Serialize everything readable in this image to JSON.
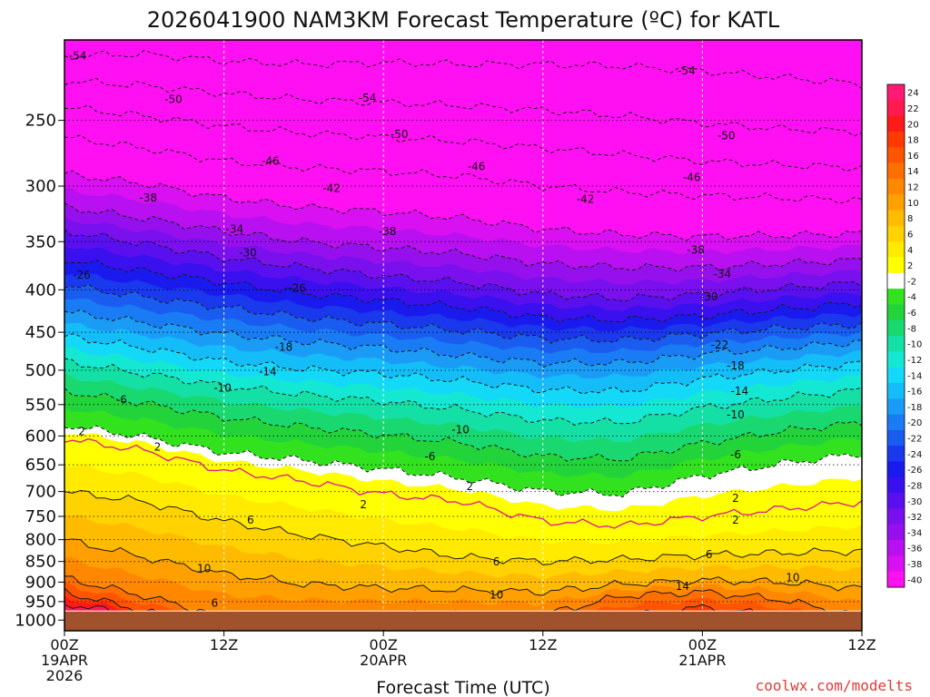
{
  "chart_data": {
    "type": "heatmap",
    "title": "2026041900 NAM3KM Forecast Temperature (ºC) for KATL",
    "xlabel": "Forecast Time (UTC)",
    "ylabel": "",
    "credit": "coolwx.com/modelts",
    "x_ticks": [
      {
        "hours": 0,
        "lines": [
          "00Z",
          "19APR",
          "2026"
        ]
      },
      {
        "hours": 12,
        "lines": [
          "12Z"
        ]
      },
      {
        "hours": 24,
        "lines": [
          "00Z",
          "20APR"
        ]
      },
      {
        "hours": 36,
        "lines": [
          "12Z"
        ]
      },
      {
        "hours": 48,
        "lines": [
          "00Z",
          "21APR"
        ]
      },
      {
        "hours": 60,
        "lines": [
          "12Z"
        ]
      }
    ],
    "xlim": [
      0,
      60
    ],
    "y_scale": "log",
    "ylim": [
      200,
      1030
    ],
    "y_ticks": [
      250,
      300,
      350,
      400,
      450,
      500,
      550,
      600,
      650,
      700,
      750,
      800,
      850,
      900,
      950,
      1000
    ],
    "ground_pressure": 975,
    "ground_color": "#a0522d",
    "colorbar": {
      "values": [
        24,
        22,
        20,
        18,
        16,
        14,
        12,
        10,
        8,
        6,
        4,
        2,
        -2,
        -4,
        -6,
        -8,
        -10,
        -12,
        -14,
        -16,
        -18,
        -20,
        -22,
        -24,
        -26,
        -28,
        -30,
        -32,
        -34,
        -36,
        -38,
        -40
      ],
      "colors": [
        "#ff1a75",
        "#ff1a4f",
        "#ff1a1a",
        "#ff3a00",
        "#ff5500",
        "#ff6e00",
        "#ff8800",
        "#ffa000",
        "#ffbb00",
        "#ffd200",
        "#ffea00",
        "#ffff00",
        "#ffffff",
        "#33e21e",
        "#22d43a",
        "#1ad870",
        "#14e0a6",
        "#14e8d2",
        "#14d8f8",
        "#14bcf8",
        "#1a9cf6",
        "#1a7cf4",
        "#1a5cf0",
        "#1a38ec",
        "#1a1aee",
        "#3a10ee",
        "#5a10ee",
        "#7a10ee",
        "#9610ee",
        "#b810f0",
        "#d810f2",
        "#ff10f2"
      ]
    },
    "profile_times": [
      0,
      6,
      12,
      18,
      24,
      30,
      36,
      42,
      48,
      54,
      60
    ],
    "isotherms": [
      {
        "t": -54,
        "p": [
          209,
          208,
          212,
          214,
          213,
          214,
          214,
          215,
          218,
          222,
          226
        ]
      },
      {
        "t": -50,
        "p": [
          224,
          227,
          232,
          236,
          238,
          240,
          243,
          247,
          252,
          256,
          258
        ]
      },
      {
        "t": -46,
        "p": [
          241,
          247,
          254,
          259,
          262,
          265,
          270,
          275,
          280,
          283,
          285
        ]
      },
      {
        "t": -42,
        "p": [
          262,
          270,
          280,
          285,
          288,
          292,
          300,
          305,
          308,
          310,
          312
        ]
      },
      {
        "t": -38,
        "p": [
          290,
          298,
          310,
          318,
          322,
          328,
          338,
          343,
          345,
          344,
          342
        ]
      },
      {
        "t": -34,
        "p": [
          318,
          328,
          340,
          350,
          356,
          362,
          372,
          376,
          376,
          372,
          368
        ]
      },
      {
        "t": -30,
        "p": [
          340,
          352,
          366,
          376,
          385,
          392,
          405,
          410,
          405,
          398,
          392
        ]
      },
      {
        "t": -26,
        "p": [
          368,
          380,
          392,
          404,
          412,
          420,
          432,
          435,
          430,
          422,
          415
        ]
      },
      {
        "t": -22,
        "p": [
          395,
          408,
          420,
          432,
          440,
          448,
          458,
          460,
          452,
          445,
          440
        ]
      },
      {
        "t": -18,
        "p": [
          425,
          438,
          452,
          462,
          470,
          480,
          490,
          490,
          478,
          470,
          462
        ]
      },
      {
        "t": -14,
        "p": [
          455,
          470,
          488,
          498,
          505,
          515,
          528,
          530,
          512,
          500,
          490
        ]
      },
      {
        "t": -10,
        "p": [
          488,
          505,
          522,
          535,
          545,
          558,
          575,
          578,
          555,
          540,
          528
        ]
      },
      {
        "t": -6,
        "p": [
          530,
          548,
          570,
          585,
          598,
          612,
          635,
          640,
          612,
          592,
          578
        ]
      },
      {
        "t": -2,
        "p": [
          582,
          602,
          628,
          642,
          658,
          675,
          700,
          705,
          670,
          648,
          630
        ]
      },
      {
        "t": 2,
        "p": [
          605,
          625,
          660,
          680,
          705,
          720,
          760,
          770,
          750,
          735,
          720
        ]
      },
      {
        "t": 6,
        "p": [
          700,
          720,
          760,
          790,
          815,
          840,
          850,
          845,
          835,
          830,
          825
        ]
      },
      {
        "t": 10,
        "p": [
          800,
          840,
          880,
          905,
          915,
          920,
          925,
          905,
          895,
          900,
          915
        ]
      },
      {
        "t": 14,
        "p": [
          890,
          935,
          990,
          990,
          985,
          985,
          985,
          935,
          925,
          945,
          990
        ]
      },
      {
        "t": 18,
        "p": [
          925,
          975,
          1030,
          1030,
          1030,
          1030,
          1030,
          990,
          965,
          990,
          1030
        ]
      },
      {
        "t": 22,
        "p": [
          955,
          990,
          1030,
          1030,
          1030,
          1030,
          1030,
          1030,
          995,
          1030,
          1030
        ]
      }
    ],
    "contour_labels": [
      {
        "hours": 1,
        "p": 209,
        "text": "-54"
      },
      {
        "hours": 22.8,
        "p": 235,
        "text": "-54"
      },
      {
        "hours": 46.8,
        "p": 218,
        "text": "-54"
      },
      {
        "hours": 8.2,
        "p": 236,
        "text": "-50"
      },
      {
        "hours": 25.2,
        "p": 260,
        "text": "-50"
      },
      {
        "hours": 49.8,
        "p": 261,
        "text": "-50"
      },
      {
        "hours": 15.5,
        "p": 280,
        "text": "-46"
      },
      {
        "hours": 31,
        "p": 284,
        "text": "-46"
      },
      {
        "hours": 47.2,
        "p": 293,
        "text": "-46"
      },
      {
        "hours": 20.1,
        "p": 302,
        "text": "-42"
      },
      {
        "hours": 39.2,
        "p": 311,
        "text": "-42"
      },
      {
        "hours": 6.3,
        "p": 310,
        "text": "-38"
      },
      {
        "hours": 24.3,
        "p": 340,
        "text": "-38"
      },
      {
        "hours": 47.5,
        "p": 358,
        "text": "-38"
      },
      {
        "hours": 12.8,
        "p": 338,
        "text": "-34"
      },
      {
        "hours": 49.5,
        "p": 383,
        "text": "-34"
      },
      {
        "hours": 13.8,
        "p": 361,
        "text": "-30"
      },
      {
        "hours": 48.5,
        "p": 408,
        "text": "-30"
      },
      {
        "hours": 1.3,
        "p": 384,
        "text": "-26"
      },
      {
        "hours": 17.5,
        "p": 398,
        "text": "-26"
      },
      {
        "hours": 49.3,
        "p": 466,
        "text": "-22"
      },
      {
        "hours": 16.5,
        "p": 469,
        "text": "-18"
      },
      {
        "hours": 50.5,
        "p": 494,
        "text": "-18"
      },
      {
        "hours": 15.3,
        "p": 502,
        "text": "-14"
      },
      {
        "hours": 50.8,
        "p": 530,
        "text": "-14"
      },
      {
        "hours": 11.9,
        "p": 525,
        "text": "-10"
      },
      {
        "hours": 29.8,
        "p": 590,
        "text": "-10"
      },
      {
        "hours": 50.5,
        "p": 566,
        "text": "-10"
      },
      {
        "hours": 4.3,
        "p": 543,
        "text": "-6"
      },
      {
        "hours": 27.5,
        "p": 635,
        "text": "-6"
      },
      {
        "hours": 50.5,
        "p": 632,
        "text": "-6"
      },
      {
        "hours": 1.3,
        "p": 593,
        "text": "2"
      },
      {
        "hours": 7,
        "p": 619,
        "text": "2"
      },
      {
        "hours": 22.5,
        "p": 726,
        "text": "2"
      },
      {
        "hours": 30.5,
        "p": 690,
        "text": "2"
      },
      {
        "hours": 50.5,
        "p": 713,
        "text": "2"
      },
      {
        "hours": 50.5,
        "p": 758,
        "text": "2"
      },
      {
        "hours": 14,
        "p": 758,
        "text": "6"
      },
      {
        "hours": 32.5,
        "p": 851,
        "text": "6"
      },
      {
        "hours": 48.5,
        "p": 834,
        "text": "6"
      },
      {
        "hours": 10.5,
        "p": 867,
        "text": "10"
      },
      {
        "hours": 32.5,
        "p": 932,
        "text": "10"
      },
      {
        "hours": 54.8,
        "p": 889,
        "text": "10"
      },
      {
        "hours": 11.3,
        "p": 954,
        "text": "6"
      },
      {
        "hours": 46.5,
        "p": 910,
        "text": "14"
      }
    ]
  }
}
